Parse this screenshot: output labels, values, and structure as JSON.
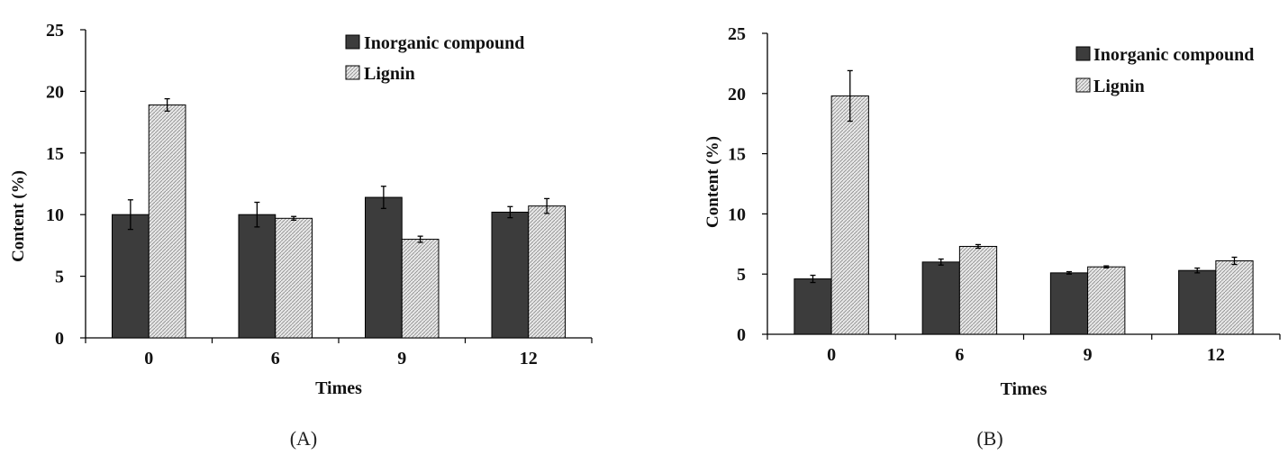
{
  "colors": {
    "inorganic_fill": "#3c3c3c",
    "lignin_fill": "#e6e6e6",
    "lignin_hatch": "#9a9a9a",
    "stroke": "#000000"
  },
  "chart_data": [
    {
      "type": "bar",
      "panel_label": "(A)",
      "categories": [
        "0",
        "6",
        "9",
        "12"
      ],
      "xlabel": "Times",
      "ylabel": "Content (%)",
      "ylim": [
        0,
        25
      ],
      "yticks": [
        "0",
        "5",
        "10",
        "15",
        "20",
        "25"
      ],
      "legend_position": "top-right",
      "series": [
        {
          "name": "Inorganic compound",
          "values": [
            10.0,
            10.0,
            11.4,
            10.2
          ],
          "errors": [
            1.2,
            1.0,
            0.9,
            0.45
          ]
        },
        {
          "name": "Lignin",
          "values": [
            18.9,
            9.7,
            8.0,
            10.7
          ],
          "errors": [
            0.5,
            0.15,
            0.25,
            0.6
          ]
        }
      ]
    },
    {
      "type": "bar",
      "panel_label": "(B)",
      "categories": [
        "0",
        "6",
        "9",
        "12"
      ],
      "xlabel": "Times",
      "ylabel": "Content (%)",
      "ylim": [
        0,
        25
      ],
      "yticks": [
        "0",
        "5",
        "10",
        "15",
        "20",
        "25"
      ],
      "legend_position": "top-right",
      "series": [
        {
          "name": "Inorganic compound",
          "values": [
            4.6,
            6.0,
            5.1,
            5.3
          ],
          "errors": [
            0.3,
            0.25,
            0.1,
            0.2
          ]
        },
        {
          "name": "Lignin",
          "values": [
            19.8,
            7.3,
            5.6,
            6.1
          ],
          "errors": [
            2.1,
            0.15,
            0.08,
            0.3
          ]
        }
      ]
    }
  ]
}
